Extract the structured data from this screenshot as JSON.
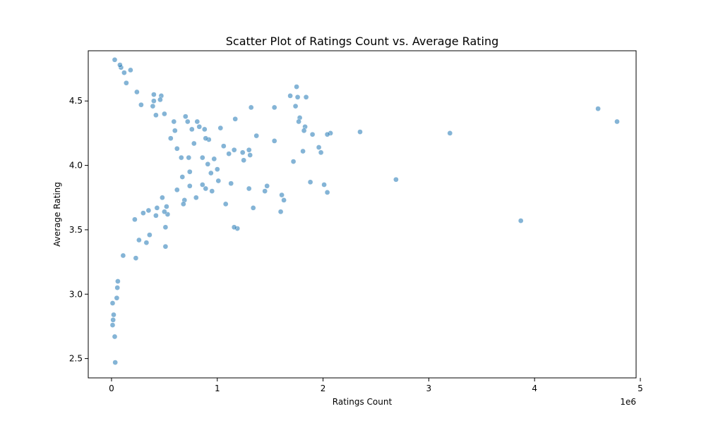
{
  "chart_data": {
    "type": "scatter",
    "title": "Scatter Plot of Ratings Count vs. Average Rating",
    "xlabel": "Ratings Count",
    "ylabel": "Average Rating",
    "x_scale_label": "1e6",
    "x_unit": 1000000,
    "xlim": [
      -220000,
      4960000
    ],
    "ylim": [
      2.35,
      4.89
    ],
    "x_ticks": [
      0,
      1000000,
      2000000,
      3000000,
      4000000,
      5000000
    ],
    "x_tick_labels": [
      "0",
      "1",
      "2",
      "3",
      "4",
      "5"
    ],
    "y_ticks": [
      2.5,
      3.0,
      3.5,
      4.0,
      4.5
    ],
    "y_tick_labels": [
      "2.5",
      "3.0",
      "3.5",
      "4.0",
      "4.5"
    ],
    "grid": false,
    "marker_color": "#1f77b4",
    "marker_alpha": 0.55,
    "series": [
      {
        "points": [
          [
            4600000,
            4.44
          ],
          [
            4780000,
            4.34
          ],
          [
            3200000,
            4.25
          ],
          [
            3870000,
            3.57
          ],
          [
            2690000,
            3.89
          ],
          [
            2350000,
            4.26
          ],
          [
            2070000,
            4.25
          ],
          [
            2040000,
            4.24
          ],
          [
            2040000,
            3.79
          ],
          [
            2010000,
            3.85
          ],
          [
            1980000,
            4.1
          ],
          [
            1960000,
            4.14
          ],
          [
            1900000,
            4.24
          ],
          [
            1880000,
            3.87
          ],
          [
            1840000,
            4.53
          ],
          [
            1830000,
            4.3
          ],
          [
            1820000,
            4.27
          ],
          [
            1810000,
            4.11
          ],
          [
            1780000,
            4.37
          ],
          [
            1770000,
            4.34
          ],
          [
            1760000,
            4.53
          ],
          [
            1750000,
            4.61
          ],
          [
            1740000,
            4.46
          ],
          [
            1720000,
            4.03
          ],
          [
            1690000,
            4.54
          ],
          [
            1630000,
            3.73
          ],
          [
            1610000,
            3.77
          ],
          [
            1600000,
            3.64
          ],
          [
            1540000,
            4.45
          ],
          [
            1540000,
            4.19
          ],
          [
            1470000,
            3.84
          ],
          [
            1450000,
            3.8
          ],
          [
            1370000,
            4.23
          ],
          [
            1340000,
            3.67
          ],
          [
            1320000,
            4.45
          ],
          [
            1310000,
            4.08
          ],
          [
            1300000,
            4.12
          ],
          [
            1300000,
            3.82
          ],
          [
            1250000,
            4.04
          ],
          [
            1240000,
            4.1
          ],
          [
            1190000,
            3.51
          ],
          [
            1170000,
            4.36
          ],
          [
            1160000,
            3.52
          ],
          [
            1160000,
            4.12
          ],
          [
            1130000,
            3.86
          ],
          [
            1110000,
            4.09
          ],
          [
            1080000,
            3.7
          ],
          [
            1060000,
            4.15
          ],
          [
            1030000,
            4.29
          ],
          [
            1010000,
            3.88
          ],
          [
            1000000,
            3.97
          ],
          [
            970000,
            4.05
          ],
          [
            950000,
            3.8
          ],
          [
            940000,
            3.94
          ],
          [
            910000,
            4.01
          ],
          [
            920000,
            4.2
          ],
          [
            890000,
            3.82
          ],
          [
            890000,
            4.21
          ],
          [
            880000,
            4.28
          ],
          [
            860000,
            3.85
          ],
          [
            860000,
            4.06
          ],
          [
            830000,
            4.3
          ],
          [
            810000,
            4.34
          ],
          [
            800000,
            3.75
          ],
          [
            780000,
            4.17
          ],
          [
            760000,
            4.28
          ],
          [
            740000,
            3.84
          ],
          [
            740000,
            3.95
          ],
          [
            730000,
            4.06
          ],
          [
            720000,
            4.34
          ],
          [
            700000,
            4.38
          ],
          [
            690000,
            3.73
          ],
          [
            680000,
            3.7
          ],
          [
            670000,
            3.91
          ],
          [
            660000,
            4.06
          ],
          [
            620000,
            3.81
          ],
          [
            620000,
            4.13
          ],
          [
            600000,
            4.27
          ],
          [
            590000,
            4.34
          ],
          [
            560000,
            4.21
          ],
          [
            530000,
            3.62
          ],
          [
            520000,
            3.68
          ],
          [
            510000,
            3.52
          ],
          [
            510000,
            3.37
          ],
          [
            500000,
            3.64
          ],
          [
            500000,
            4.4
          ],
          [
            480000,
            3.75
          ],
          [
            470000,
            4.54
          ],
          [
            460000,
            4.51
          ],
          [
            430000,
            3.67
          ],
          [
            420000,
            3.61
          ],
          [
            420000,
            4.39
          ],
          [
            400000,
            4.55
          ],
          [
            400000,
            4.5
          ],
          [
            390000,
            4.46
          ],
          [
            360000,
            3.46
          ],
          [
            350000,
            3.65
          ],
          [
            330000,
            3.4
          ],
          [
            300000,
            3.63
          ],
          [
            280000,
            4.47
          ],
          [
            260000,
            3.42
          ],
          [
            230000,
            3.28
          ],
          [
            240000,
            4.57
          ],
          [
            220000,
            3.58
          ],
          [
            180000,
            4.74
          ],
          [
            140000,
            4.64
          ],
          [
            120000,
            4.72
          ],
          [
            110000,
            3.3
          ],
          [
            90000,
            4.76
          ],
          [
            80000,
            4.78
          ],
          [
            60000,
            3.1
          ],
          [
            55000,
            3.05
          ],
          [
            50000,
            2.97
          ],
          [
            30000,
            4.82
          ],
          [
            30000,
            2.67
          ],
          [
            35000,
            2.47
          ],
          [
            20000,
            2.84
          ],
          [
            15000,
            2.8
          ],
          [
            10000,
            2.76
          ],
          [
            10000,
            2.93
          ]
        ]
      }
    ]
  }
}
